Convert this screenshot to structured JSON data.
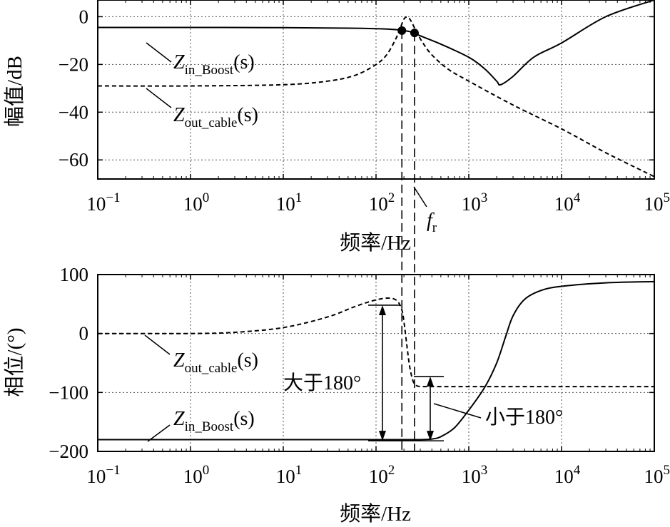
{
  "chart_data": [
    {
      "type": "line",
      "xscale": "log",
      "xlim": [
        0.1,
        100000
      ],
      "ylim": [
        -68,
        7
      ],
      "grid": true,
      "xlabel": "频率/Hz",
      "ylabel": "幅值/dB",
      "x_ticks": [
        {
          "base": "10",
          "exp": "−1"
        },
        {
          "base": "10",
          "exp": "0"
        },
        {
          "base": "10",
          "exp": "1"
        },
        {
          "base": "10",
          "exp": "2"
        },
        {
          "base": "10",
          "exp": "3"
        },
        {
          "base": "10",
          "exp": "4"
        },
        {
          "base": "10",
          "exp": "5"
        }
      ],
      "y_ticks": [
        "0",
        "−20",
        "−40",
        "−60"
      ],
      "series": [
        {
          "name": "Z_in_Boost(s)",
          "style": "solid",
          "x": [
            0.1,
            1,
            10,
            50,
            100,
            150,
            200,
            250,
            300,
            500,
            1000,
            1500,
            2000,
            2200,
            3000,
            5000,
            10000,
            30000,
            100000
          ],
          "y": [
            -4.5,
            -4.5,
            -4.6,
            -4.8,
            -5,
            -5.3,
            -5.8,
            -6.6,
            -8,
            -11.5,
            -17,
            -22,
            -27,
            -28.5,
            -25,
            -17,
            -11,
            0,
            7
          ]
        },
        {
          "name": "Z_out_cable(s)",
          "style": "dashed",
          "x": [
            0.1,
            1,
            10,
            30,
            60,
            100,
            130,
            160,
            180,
            200,
            220,
            240,
            270,
            320,
            400,
            600,
            1000,
            3000,
            10000,
            30000,
            100000
          ],
          "y": [
            -29,
            -29,
            -28.5,
            -27,
            -24.5,
            -20,
            -16,
            -10,
            -5.5,
            -1,
            -0.2,
            -2,
            -6,
            -11,
            -16,
            -22,
            -27,
            -37,
            -47,
            -57,
            -67
          ]
        }
      ],
      "markers": [
        {
          "x": 190,
          "y": -5.8
        },
        {
          "x": 260,
          "y": -6.8
        }
      ],
      "annotations": {
        "z_in_boost": {
          "main": "Z",
          "sub": "in_Boost",
          "arg": "(s)"
        },
        "z_out_cable": {
          "main": "Z",
          "sub": "out_cable",
          "arg": "(s)"
        },
        "fr": {
          "main": "f",
          "sub": "r"
        }
      }
    },
    {
      "type": "line",
      "xscale": "log",
      "xlim": [
        0.1,
        100000
      ],
      "ylim": [
        -200,
        100
      ],
      "grid": true,
      "xlabel": "频率/Hz",
      "ylabel": "相位/(°)",
      "x_ticks": [
        {
          "base": "10",
          "exp": "−1"
        },
        {
          "base": "10",
          "exp": "0"
        },
        {
          "base": "10",
          "exp": "1"
        },
        {
          "base": "10",
          "exp": "2"
        },
        {
          "base": "10",
          "exp": "3"
        },
        {
          "base": "10",
          "exp": "4"
        },
        {
          "base": "10",
          "exp": "5"
        }
      ],
      "y_ticks": [
        "100",
        "0",
        "−100",
        "−200"
      ],
      "series": [
        {
          "name": "Z_in_Boost(s)",
          "style": "solid",
          "x": [
            0.1,
            1,
            10,
            100,
            200,
            300,
            400,
            500,
            700,
            1000,
            1500,
            2000,
            2500,
            3000,
            4000,
            6000,
            10000,
            30000,
            100000
          ],
          "y": [
            -180,
            -180,
            -180,
            -180,
            -180,
            -180,
            -179,
            -175,
            -160,
            -130,
            -90,
            -50,
            -5,
            30,
            58,
            73,
            80,
            86,
            88
          ]
        },
        {
          "name": "Z_out_cable(s)",
          "style": "dashed",
          "x": [
            0.1,
            1,
            3,
            10,
            30,
            60,
            100,
            140,
            170,
            190,
            200,
            215,
            230,
            250,
            270,
            300,
            350,
            500,
            1000,
            10000,
            100000
          ],
          "y": [
            0,
            0,
            2,
            10,
            28,
            46,
            57,
            60,
            55,
            40,
            20,
            -20,
            -55,
            -80,
            -88,
            -90,
            -90,
            -90,
            -90,
            -90,
            -90
          ]
        }
      ],
      "annotations": {
        "z_out_cable": {
          "main": "Z",
          "sub": "out_cable",
          "arg": "(s)"
        },
        "z_in_boost": {
          "main": "Z",
          "sub": "in_Boost",
          "arg": "(s)"
        },
        "greater": "大于180°",
        "less": "小于180°"
      }
    }
  ]
}
